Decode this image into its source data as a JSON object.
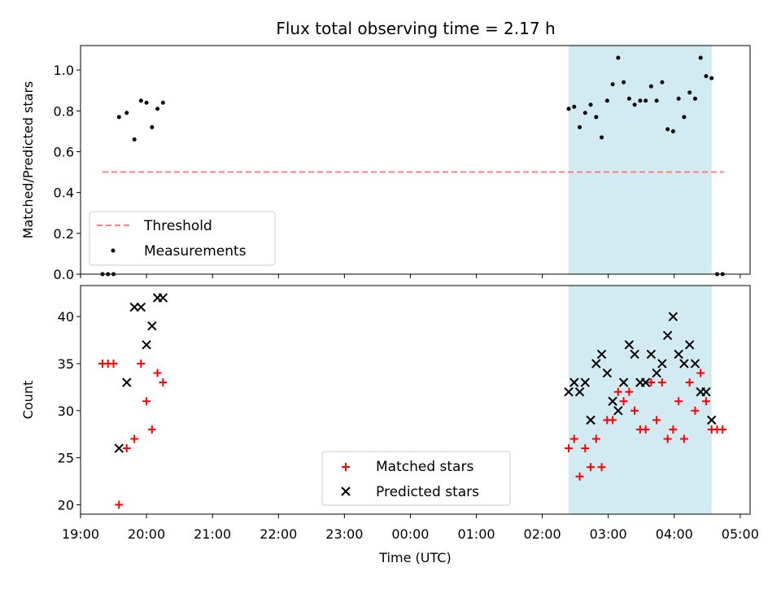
{
  "title": "Flux total observing time = 2.17 h",
  "colors": {
    "threshold": "#ff7f7f",
    "measurements": "#000000",
    "matched": "#ff0000",
    "predicted": "#000000",
    "shade": "#add8e6"
  },
  "chart_data": [
    {
      "type": "scatter",
      "panel": "top",
      "ylabel": "Matched/Predicted stars",
      "xlabel": "",
      "x_unit": "hours since 19:00 UTC",
      "xlim": [
        19.0,
        29.15
      ],
      "ylim": [
        0.0,
        1.12
      ],
      "yticks": [
        0.0,
        0.2,
        0.4,
        0.6,
        0.8,
        1.0
      ],
      "ytick_labels": [
        "0.0",
        "0.2",
        "0.4",
        "0.6",
        "0.8",
        "1.0"
      ],
      "shaded_interval": [
        "02:24",
        "04:34"
      ],
      "legend": {
        "placement": "lower-left",
        "entries": [
          "Threshold",
          "Measurements"
        ]
      },
      "threshold": {
        "name": "Threshold",
        "y": 0.5,
        "x_range": [
          "19:20",
          "04:45"
        ]
      },
      "series": [
        {
          "name": "Measurements",
          "x": [
            "19:20",
            "19:25",
            "19:30",
            "19:35",
            "19:42",
            "19:49",
            "19:55",
            "20:00",
            "20:05",
            "20:10",
            "20:15",
            "02:24",
            "02:29",
            "02:34",
            "02:39",
            "02:44",
            "02:49",
            "02:54",
            "02:59",
            "03:04",
            "03:09",
            "03:14",
            "03:19",
            "03:24",
            "03:29",
            "03:34",
            "03:39",
            "03:44",
            "03:49",
            "03:54",
            "03:59",
            "04:04",
            "04:09",
            "04:14",
            "04:19",
            "04:24",
            "04:29",
            "04:34",
            "04:39",
            "04:44"
          ],
          "y": [
            0.0,
            0.0,
            0.0,
            0.77,
            0.79,
            0.66,
            0.85,
            0.84,
            0.72,
            0.81,
            0.84,
            0.81,
            0.82,
            0.72,
            0.79,
            0.83,
            0.77,
            0.67,
            0.85,
            0.93,
            1.06,
            0.94,
            0.86,
            0.83,
            0.85,
            0.85,
            0.92,
            0.85,
            0.94,
            0.71,
            0.7,
            0.86,
            0.77,
            0.89,
            0.86,
            1.06,
            0.97,
            0.96,
            0.0,
            0.0
          ]
        }
      ]
    },
    {
      "type": "scatter",
      "panel": "bottom",
      "ylabel": "Count",
      "xlabel": "Time (UTC)",
      "x_unit": "hours since 19:00 UTC",
      "xlim": [
        19.0,
        29.15
      ],
      "ylim": [
        19,
        43.3
      ],
      "yticks": [
        20,
        25,
        30,
        35,
        40
      ],
      "ytick_labels": [
        "20",
        "25",
        "30",
        "35",
        "40"
      ],
      "xticks": [
        "19:00",
        "20:00",
        "21:00",
        "22:00",
        "23:00",
        "00:00",
        "01:00",
        "02:00",
        "03:00",
        "04:00",
        "05:00"
      ],
      "shaded_interval": [
        "02:24",
        "04:34"
      ],
      "legend": {
        "placement": "lower-center",
        "entries": [
          "Matched stars",
          "Predicted stars"
        ]
      },
      "series": [
        {
          "name": "Matched stars",
          "marker": "plus",
          "x": [
            "19:20",
            "19:25",
            "19:30",
            "19:35",
            "19:42",
            "19:49",
            "19:55",
            "20:00",
            "20:05",
            "20:10",
            "20:15",
            "02:24",
            "02:29",
            "02:34",
            "02:39",
            "02:44",
            "02:49",
            "02:54",
            "02:59",
            "03:04",
            "03:09",
            "03:14",
            "03:19",
            "03:24",
            "03:29",
            "03:34",
            "03:39",
            "03:44",
            "03:49",
            "03:54",
            "03:59",
            "04:04",
            "04:09",
            "04:14",
            "04:19",
            "04:24",
            "04:29",
            "04:34",
            "04:39",
            "04:44"
          ],
          "y": [
            35,
            35,
            35,
            20,
            26,
            27,
            35,
            31,
            28,
            34,
            33,
            26,
            27,
            23,
            26,
            24,
            27,
            24,
            29,
            29,
            32,
            31,
            32,
            30,
            28,
            28,
            33,
            29,
            33,
            27,
            28,
            31,
            27,
            33,
            30,
            34,
            31,
            28,
            28,
            28
          ]
        },
        {
          "name": "Predicted stars",
          "marker": "x",
          "x": [
            "19:35",
            "19:42",
            "19:49",
            "19:55",
            "20:00",
            "20:05",
            "20:10",
            "20:15",
            "02:24",
            "02:29",
            "02:34",
            "02:39",
            "02:44",
            "02:49",
            "02:54",
            "02:59",
            "03:04",
            "03:09",
            "03:14",
            "03:19",
            "03:24",
            "03:29",
            "03:34",
            "03:39",
            "03:44",
            "03:49",
            "03:54",
            "03:59",
            "04:04",
            "04:09",
            "04:14",
            "04:19",
            "04:24",
            "04:29",
            "04:34"
          ],
          "y": [
            26,
            33,
            41,
            41,
            37,
            39,
            42,
            42,
            32,
            33,
            32,
            33,
            29,
            35,
            36,
            34,
            31,
            30,
            33,
            37,
            36,
            33,
            33,
            36,
            34,
            35,
            38,
            40,
            36,
            35,
            37,
            35,
            32,
            32,
            29
          ]
        }
      ]
    }
  ]
}
